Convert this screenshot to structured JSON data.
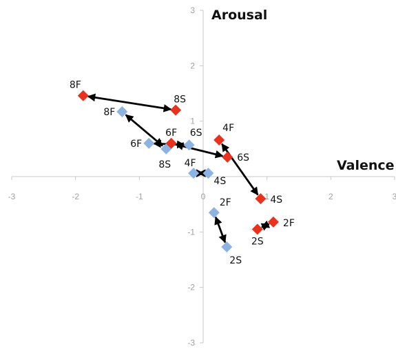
{
  "chart_data": {
    "type": "scatter",
    "xlabel": "Valence",
    "ylabel": "Arousal",
    "xlim": [
      -3,
      3
    ],
    "ylim": [
      -3,
      3
    ],
    "x_ticks": [
      -3,
      -2,
      -1,
      0,
      1,
      2,
      3
    ],
    "y_ticks": [
      -3,
      -2,
      -1,
      0,
      1,
      2,
      3
    ],
    "x_tick_labels": [
      "-3",
      "-2",
      "-1",
      "0",
      "1",
      "2",
      "3"
    ],
    "y_tick_labels": [
      "-3",
      "-2",
      "-1",
      "0",
      "1",
      "2",
      "3"
    ],
    "grid": false,
    "series": [
      {
        "color": "#e8321e",
        "marker": "diamond",
        "points": [
          {
            "label": "8F",
            "x": -1.88,
            "y": 1.46
          },
          {
            "label": "8S",
            "x": -0.43,
            "y": 1.2
          },
          {
            "label": "6F",
            "x": -0.5,
            "y": 0.6
          },
          {
            "label": "4F",
            "x": 0.25,
            "y": 0.66
          },
          {
            "label": "6S",
            "x": 0.38,
            "y": 0.35
          },
          {
            "label": "4S",
            "x": 0.9,
            "y": -0.4
          },
          {
            "label": "2F",
            "x": 1.1,
            "y": -0.82
          },
          {
            "label": "2S",
            "x": 0.85,
            "y": -0.95
          }
        ]
      },
      {
        "color": "#8db3e2",
        "marker": "diamond",
        "points": [
          {
            "label": "8F",
            "x": -1.27,
            "y": 1.17
          },
          {
            "label": "6F",
            "x": -0.85,
            "y": 0.6
          },
          {
            "label": "8S",
            "x": -0.58,
            "y": 0.5
          },
          {
            "label": "6S",
            "x": -0.22,
            "y": 0.57
          },
          {
            "label": "4F",
            "x": -0.15,
            "y": 0.06
          },
          {
            "label": "4S",
            "x": 0.08,
            "y": 0.06
          },
          {
            "label": "2F",
            "x": 0.17,
            "y": -0.65
          },
          {
            "label": "2S",
            "x": 0.37,
            "y": -1.27
          }
        ]
      }
    ],
    "arrows": [
      {
        "from": [
          -1.88,
          1.46
        ],
        "to": [
          -0.43,
          1.2
        ]
      },
      {
        "from": [
          -1.27,
          1.17
        ],
        "to": [
          -0.58,
          0.5
        ]
      },
      {
        "from": [
          -0.85,
          0.6
        ],
        "to": [
          -0.22,
          0.57
        ]
      },
      {
        "from": [
          -0.5,
          0.6
        ],
        "to": [
          0.38,
          0.35
        ]
      },
      {
        "from": [
          0.25,
          0.66
        ],
        "to": [
          0.9,
          -0.4
        ]
      },
      {
        "from": [
          -0.15,
          0.06
        ],
        "to": [
          0.08,
          0.06
        ]
      },
      {
        "from": [
          0.17,
          -0.65
        ],
        "to": [
          0.37,
          -1.27
        ]
      },
      {
        "from": [
          1.1,
          -0.82
        ],
        "to": [
          0.85,
          -0.95
        ]
      }
    ]
  }
}
